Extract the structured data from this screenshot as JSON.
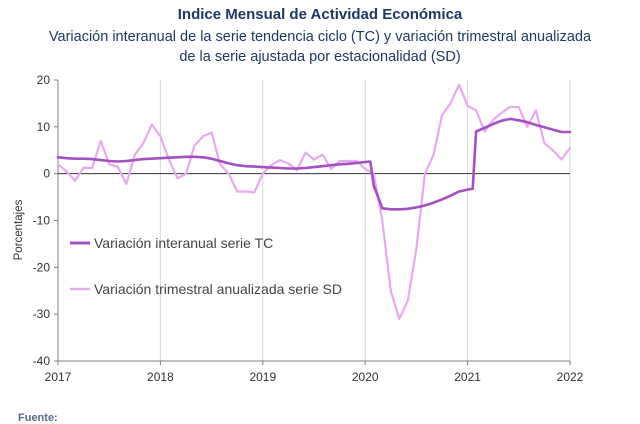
{
  "chart_data": {
    "type": "line",
    "title": "Indice Mensual de  Actividad Económica",
    "subtitle_line1": "Variación interanual de la serie tendencia ciclo (TC) y variación trimestral anualizada",
    "subtitle_line2": "de la serie ajustada por estacionalidad (SD)",
    "ylabel": "Porcentajes",
    "xlabel": "",
    "ylim": [
      -40,
      20
    ],
    "yticks": [
      20,
      10,
      0,
      -10,
      -20,
      -30,
      -40
    ],
    "xlim": [
      2017,
      2022
    ],
    "xticks": [
      "2017",
      "2018",
      "2019",
      "2020",
      "2021",
      "2022"
    ],
    "grid": "vertical",
    "legend_position": "center-left",
    "colors": {
      "tc": "#a64fc2",
      "sd": "#e8a9f2",
      "zero_line": "#333333",
      "grid": "#d9d9d9"
    },
    "series": [
      {
        "name": "Variación interanual serie TC",
        "x": [
          2017.0,
          2017.083,
          2017.167,
          2017.25,
          2017.333,
          2017.417,
          2017.5,
          2017.583,
          2017.667,
          2017.75,
          2017.833,
          2017.917,
          2018.0,
          2018.083,
          2018.167,
          2018.25,
          2018.333,
          2018.417,
          2018.5,
          2018.583,
          2018.667,
          2018.75,
          2018.833,
          2018.917,
          2019.0,
          2019.083,
          2019.167,
          2019.25,
          2019.333,
          2019.417,
          2019.5,
          2019.583,
          2019.667,
          2019.75,
          2019.833,
          2019.917,
          2020.0,
          2020.05,
          2020.083,
          2020.167,
          2020.25,
          2020.333,
          2020.417,
          2020.5,
          2020.583,
          2020.667,
          2020.75,
          2020.833,
          2020.917,
          2021.0,
          2021.05,
          2021.083,
          2021.167,
          2021.25,
          2021.333,
          2021.417,
          2021.5,
          2021.583,
          2021.667,
          2021.75,
          2021.833,
          2021.917,
          2022.0
        ],
        "values": [
          3.5,
          3.3,
          3.2,
          3.2,
          3.1,
          2.9,
          2.7,
          2.6,
          2.7,
          2.9,
          3.1,
          3.2,
          3.3,
          3.4,
          3.5,
          3.6,
          3.6,
          3.5,
          3.2,
          2.7,
          2.2,
          1.8,
          1.6,
          1.5,
          1.4,
          1.3,
          1.2,
          1.1,
          1.1,
          1.2,
          1.4,
          1.6,
          1.8,
          2.0,
          2.1,
          2.3,
          2.5,
          2.6,
          -2.5,
          -7.4,
          -7.6,
          -7.6,
          -7.5,
          -7.2,
          -6.8,
          -6.2,
          -5.5,
          -4.7,
          -3.8,
          -3.4,
          -3.2,
          9.0,
          9.8,
          10.6,
          11.3,
          11.7,
          11.4,
          11.0,
          10.4,
          9.9,
          9.4,
          8.9,
          8.9
        ]
      },
      {
        "name": "Variación trimestral anualizada serie SD",
        "x": [
          2017.0,
          2017.083,
          2017.167,
          2017.25,
          2017.333,
          2017.417,
          2017.5,
          2017.583,
          2017.667,
          2017.75,
          2017.833,
          2017.917,
          2018.0,
          2018.083,
          2018.167,
          2018.25,
          2018.333,
          2018.417,
          2018.5,
          2018.583,
          2018.667,
          2018.75,
          2018.833,
          2018.917,
          2019.0,
          2019.083,
          2019.167,
          2019.25,
          2019.333,
          2019.417,
          2019.5,
          2019.583,
          2019.667,
          2019.75,
          2019.833,
          2019.917,
          2020.0,
          2020.083,
          2020.167,
          2020.25,
          2020.333,
          2020.417,
          2020.5,
          2020.583,
          2020.667,
          2020.75,
          2020.833,
          2020.917,
          2021.0,
          2021.083,
          2021.167,
          2021.25,
          2021.333,
          2021.417,
          2021.5,
          2021.583,
          2021.667,
          2021.75,
          2021.833,
          2021.917,
          2022.0
        ],
        "values": [
          2.0,
          0.5,
          -1.5,
          1.3,
          1.2,
          7.0,
          2.0,
          1.5,
          -2.2,
          4.0,
          6.5,
          10.5,
          8.0,
          3.0,
          -1.0,
          0.0,
          6.0,
          8.0,
          8.8,
          2.0,
          0.0,
          -3.8,
          -3.8,
          -4.0,
          0.0,
          1.8,
          2.9,
          2.2,
          0.7,
          4.5,
          3.0,
          4.1,
          1.0,
          2.7,
          2.7,
          2.7,
          1.0,
          0.0,
          -10.0,
          -25.0,
          -31.0,
          -27.0,
          -16.0,
          0.0,
          4.0,
          12.5,
          15.0,
          19.0,
          14.5,
          13.5,
          9.0,
          11.5,
          13.0,
          14.3,
          14.2,
          10.0,
          13.5,
          6.5,
          5.0,
          3.0,
          5.5
        ]
      }
    ]
  },
  "footer": {
    "source_label": "Fuente:"
  }
}
